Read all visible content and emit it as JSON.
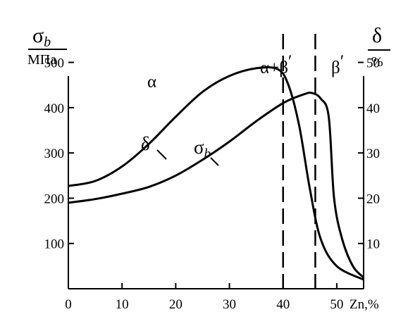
{
  "chart_data": {
    "type": "line",
    "x_axis": {
      "label": "Zn,%",
      "range": [
        0,
        55
      ],
      "ticks": [
        0,
        10,
        20,
        30,
        40,
        50
      ]
    },
    "y_left": {
      "title_symbol": "σ",
      "title_subscript": "b",
      "unit": "МПа",
      "range": [
        0,
        560
      ],
      "ticks": [
        100,
        200,
        300,
        400,
        500
      ]
    },
    "y_right": {
      "title_symbol": "δ",
      "unit": "%",
      "range": [
        0,
        56
      ],
      "ticks": [
        10,
        20,
        30,
        40,
        50
      ]
    },
    "series": [
      {
        "name": "δ",
        "axis": "right",
        "points": [
          [
            0,
            22.7
          ],
          [
            5,
            23.8
          ],
          [
            10,
            27
          ],
          [
            15,
            32
          ],
          [
            20,
            38
          ],
          [
            25,
            43.5
          ],
          [
            30,
            47
          ],
          [
            35,
            48.7
          ],
          [
            39,
            48.5
          ],
          [
            41,
            45
          ],
          [
            43,
            36
          ],
          [
            45,
            22
          ],
          [
            47,
            11
          ],
          [
            50,
            5
          ],
          [
            55,
            2
          ]
        ]
      },
      {
        "name": "σb",
        "axis": "left",
        "subscript": "b",
        "points": [
          [
            0,
            190
          ],
          [
            5,
            198
          ],
          [
            10,
            210
          ],
          [
            15,
            225
          ],
          [
            20,
            250
          ],
          [
            25,
            285
          ],
          [
            30,
            325
          ],
          [
            35,
            370
          ],
          [
            40,
            410
          ],
          [
            44,
            430
          ],
          [
            45.5,
            432
          ],
          [
            47,
            420
          ],
          [
            48.5,
            380
          ],
          [
            49.5,
            200
          ],
          [
            51,
            110
          ],
          [
            53,
            50
          ],
          [
            55,
            25
          ]
        ]
      }
    ],
    "phase_boundaries": [
      40,
      46
    ],
    "regions": [
      {
        "label": "α"
      },
      {
        "label": "α+β",
        "prime": "′"
      },
      {
        "label": "β",
        "prime": "′"
      }
    ],
    "grid": false
  }
}
